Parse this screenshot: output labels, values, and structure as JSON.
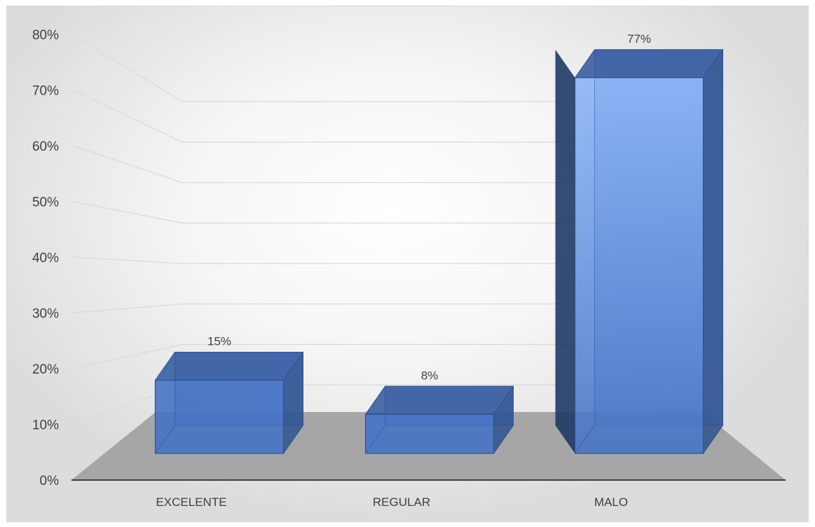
{
  "chart_data": {
    "type": "bar",
    "categories": [
      "EXCELENTE",
      "REGULAR",
      "MALO"
    ],
    "values": [
      15,
      8,
      77
    ],
    "data_labels": [
      "15%",
      "8%",
      "77%"
    ],
    "ylim": [
      0,
      80
    ],
    "yticks": [
      0,
      10,
      20,
      30,
      40,
      50,
      60,
      70,
      80
    ],
    "ytick_labels": [
      "0%",
      "10%",
      "20%",
      "30%",
      "40%",
      "50%",
      "60%",
      "70%",
      "80%"
    ],
    "grid": true,
    "legend": "none",
    "style": "3d-column",
    "colors": {
      "bar_front": "#4472c4",
      "bar_side": "#2f528f",
      "bar_top": "#3a5ea3",
      "floor": "#a6a6a6",
      "grid": "#d9d9d9",
      "axis": "#404040"
    }
  }
}
